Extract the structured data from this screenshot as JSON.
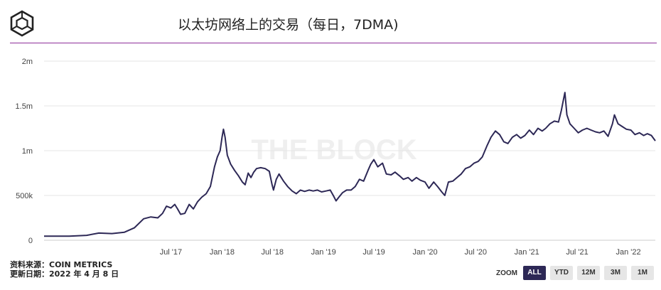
{
  "header": {
    "title": "以太坊网络上的交易（每日，7DMA)"
  },
  "watermark": "THE BLOCK",
  "footer": {
    "source_line": "资料来源：COIN METRICS",
    "date_line": "更新日期：2022 年 4 月 8 日"
  },
  "zoom": {
    "label": "ZOOM",
    "buttons": [
      {
        "label": "ALL",
        "active": true
      },
      {
        "label": "YTD",
        "active": false
      },
      {
        "label": "12M",
        "active": false
      },
      {
        "label": "3M",
        "active": false
      },
      {
        "label": "1M",
        "active": false
      }
    ]
  },
  "colors": {
    "line": "#2d2856",
    "rule": "#8e2f9a",
    "grid": "#e6e6e6"
  },
  "chart_data": {
    "type": "line",
    "title": "",
    "xlabel": "",
    "ylabel": "",
    "ylim": [
      0,
      2000000
    ],
    "yticks": [
      {
        "value": 0,
        "label": "0"
      },
      {
        "value": 500000,
        "label": "500k"
      },
      {
        "value": 1000000,
        "label": "1m"
      },
      {
        "value": 1500000,
        "label": "1.5m"
      },
      {
        "value": 2000000,
        "label": "2m"
      }
    ],
    "xlim": [
      "2016-04-01",
      "2022-04-08"
    ],
    "xticks": [
      {
        "value": "2017-07-01",
        "label": "Jul '17"
      },
      {
        "value": "2018-01-01",
        "label": "Jan '18"
      },
      {
        "value": "2018-07-01",
        "label": "Jul '18"
      },
      {
        "value": "2019-01-01",
        "label": "Jan '19"
      },
      {
        "value": "2019-07-01",
        "label": "Jul '19"
      },
      {
        "value": "2020-01-01",
        "label": "Jan '20"
      },
      {
        "value": "2020-07-01",
        "label": "Jul '20"
      },
      {
        "value": "2021-01-01",
        "label": "Jan '21"
      },
      {
        "value": "2021-07-01",
        "label": "Jul '21"
      },
      {
        "value": "2022-01-01",
        "label": "Jan '22"
      }
    ],
    "grid": true,
    "series": [
      {
        "name": "",
        "color": "#2d2856",
        "points": [
          [
            "2016-04-01",
            45000
          ],
          [
            "2016-07-01",
            45000
          ],
          [
            "2016-09-01",
            55000
          ],
          [
            "2016-10-15",
            80000
          ],
          [
            "2016-12-01",
            75000
          ],
          [
            "2017-01-15",
            90000
          ],
          [
            "2017-02-20",
            140000
          ],
          [
            "2017-03-25",
            240000
          ],
          [
            "2017-04-20",
            260000
          ],
          [
            "2017-05-15",
            250000
          ],
          [
            "2017-06-01",
            300000
          ],
          [
            "2017-06-15",
            380000
          ],
          [
            "2017-07-01",
            360000
          ],
          [
            "2017-07-15",
            400000
          ],
          [
            "2017-07-25",
            350000
          ],
          [
            "2017-08-05",
            290000
          ],
          [
            "2017-08-20",
            300000
          ],
          [
            "2017-09-05",
            400000
          ],
          [
            "2017-09-20",
            350000
          ],
          [
            "2017-10-05",
            430000
          ],
          [
            "2017-10-20",
            480000
          ],
          [
            "2017-11-05",
            520000
          ],
          [
            "2017-11-20",
            600000
          ],
          [
            "2017-12-05",
            820000
          ],
          [
            "2017-12-15",
            930000
          ],
          [
            "2017-12-25",
            1000000
          ],
          [
            "2018-01-01",
            1150000
          ],
          [
            "2018-01-06",
            1240000
          ],
          [
            "2018-01-12",
            1150000
          ],
          [
            "2018-01-20",
            950000
          ],
          [
            "2018-02-01",
            850000
          ],
          [
            "2018-02-15",
            780000
          ],
          [
            "2018-03-01",
            720000
          ],
          [
            "2018-03-15",
            650000
          ],
          [
            "2018-03-25",
            620000
          ],
          [
            "2018-04-05",
            750000
          ],
          [
            "2018-04-15",
            700000
          ],
          [
            "2018-04-25",
            760000
          ],
          [
            "2018-05-05",
            800000
          ],
          [
            "2018-05-20",
            810000
          ],
          [
            "2018-06-05",
            800000
          ],
          [
            "2018-06-20",
            770000
          ],
          [
            "2018-06-30",
            620000
          ],
          [
            "2018-07-05",
            560000
          ],
          [
            "2018-07-15",
            680000
          ],
          [
            "2018-07-25",
            740000
          ],
          [
            "2018-08-10",
            660000
          ],
          [
            "2018-08-25",
            600000
          ],
          [
            "2018-09-10",
            550000
          ],
          [
            "2018-09-25",
            520000
          ],
          [
            "2018-10-10",
            560000
          ],
          [
            "2018-10-25",
            545000
          ],
          [
            "2018-11-10",
            560000
          ],
          [
            "2018-11-25",
            550000
          ],
          [
            "2018-12-10",
            560000
          ],
          [
            "2018-12-25",
            540000
          ],
          [
            "2019-01-10",
            550000
          ],
          [
            "2019-01-25",
            560000
          ],
          [
            "2019-02-05",
            500000
          ],
          [
            "2019-02-15",
            440000
          ],
          [
            "2019-02-25",
            480000
          ],
          [
            "2019-03-10",
            530000
          ],
          [
            "2019-03-25",
            560000
          ],
          [
            "2019-04-10",
            560000
          ],
          [
            "2019-04-25",
            600000
          ],
          [
            "2019-05-10",
            680000
          ],
          [
            "2019-05-25",
            660000
          ],
          [
            "2019-06-10",
            780000
          ],
          [
            "2019-06-20",
            850000
          ],
          [
            "2019-07-01",
            900000
          ],
          [
            "2019-07-15",
            820000
          ],
          [
            "2019-08-01",
            860000
          ],
          [
            "2019-08-15",
            740000
          ],
          [
            "2019-09-01",
            730000
          ],
          [
            "2019-09-15",
            760000
          ],
          [
            "2019-10-01",
            720000
          ],
          [
            "2019-10-15",
            680000
          ],
          [
            "2019-11-01",
            700000
          ],
          [
            "2019-11-15",
            660000
          ],
          [
            "2019-12-01",
            700000
          ],
          [
            "2019-12-15",
            670000
          ],
          [
            "2020-01-01",
            650000
          ],
          [
            "2020-01-15",
            580000
          ],
          [
            "2020-02-01",
            650000
          ],
          [
            "2020-02-15",
            600000
          ],
          [
            "2020-03-01",
            540000
          ],
          [
            "2020-03-12",
            500000
          ],
          [
            "2020-03-25",
            650000
          ],
          [
            "2020-04-10",
            660000
          ],
          [
            "2020-04-25",
            700000
          ],
          [
            "2020-05-10",
            740000
          ],
          [
            "2020-05-25",
            800000
          ],
          [
            "2020-06-10",
            820000
          ],
          [
            "2020-06-25",
            860000
          ],
          [
            "2020-07-10",
            880000
          ],
          [
            "2020-07-25",
            930000
          ],
          [
            "2020-08-10",
            1050000
          ],
          [
            "2020-08-25",
            1150000
          ],
          [
            "2020-09-10",
            1220000
          ],
          [
            "2020-09-25",
            1180000
          ],
          [
            "2020-10-10",
            1100000
          ],
          [
            "2020-10-25",
            1080000
          ],
          [
            "2020-11-10",
            1150000
          ],
          [
            "2020-11-25",
            1180000
          ],
          [
            "2020-12-10",
            1140000
          ],
          [
            "2020-12-25",
            1170000
          ],
          [
            "2021-01-10",
            1230000
          ],
          [
            "2021-01-25",
            1180000
          ],
          [
            "2021-02-10",
            1250000
          ],
          [
            "2021-02-25",
            1220000
          ],
          [
            "2021-03-10",
            1250000
          ],
          [
            "2021-03-25",
            1300000
          ],
          [
            "2021-04-10",
            1330000
          ],
          [
            "2021-04-25",
            1320000
          ],
          [
            "2021-05-05",
            1450000
          ],
          [
            "2021-05-12",
            1560000
          ],
          [
            "2021-05-18",
            1650000
          ],
          [
            "2021-05-25",
            1400000
          ],
          [
            "2021-06-05",
            1300000
          ],
          [
            "2021-06-20",
            1250000
          ],
          [
            "2021-07-05",
            1200000
          ],
          [
            "2021-07-20",
            1230000
          ],
          [
            "2021-08-05",
            1250000
          ],
          [
            "2021-08-20",
            1230000
          ],
          [
            "2021-09-05",
            1210000
          ],
          [
            "2021-09-20",
            1200000
          ],
          [
            "2021-10-05",
            1220000
          ],
          [
            "2021-10-20",
            1160000
          ],
          [
            "2021-11-05",
            1300000
          ],
          [
            "2021-11-12",
            1400000
          ],
          [
            "2021-11-25",
            1300000
          ],
          [
            "2021-12-10",
            1270000
          ],
          [
            "2021-12-25",
            1240000
          ],
          [
            "2022-01-10",
            1230000
          ],
          [
            "2022-01-25",
            1180000
          ],
          [
            "2022-02-10",
            1200000
          ],
          [
            "2022-02-25",
            1170000
          ],
          [
            "2022-03-10",
            1190000
          ],
          [
            "2022-03-25",
            1170000
          ],
          [
            "2022-04-08",
            1110000
          ]
        ]
      }
    ]
  }
}
